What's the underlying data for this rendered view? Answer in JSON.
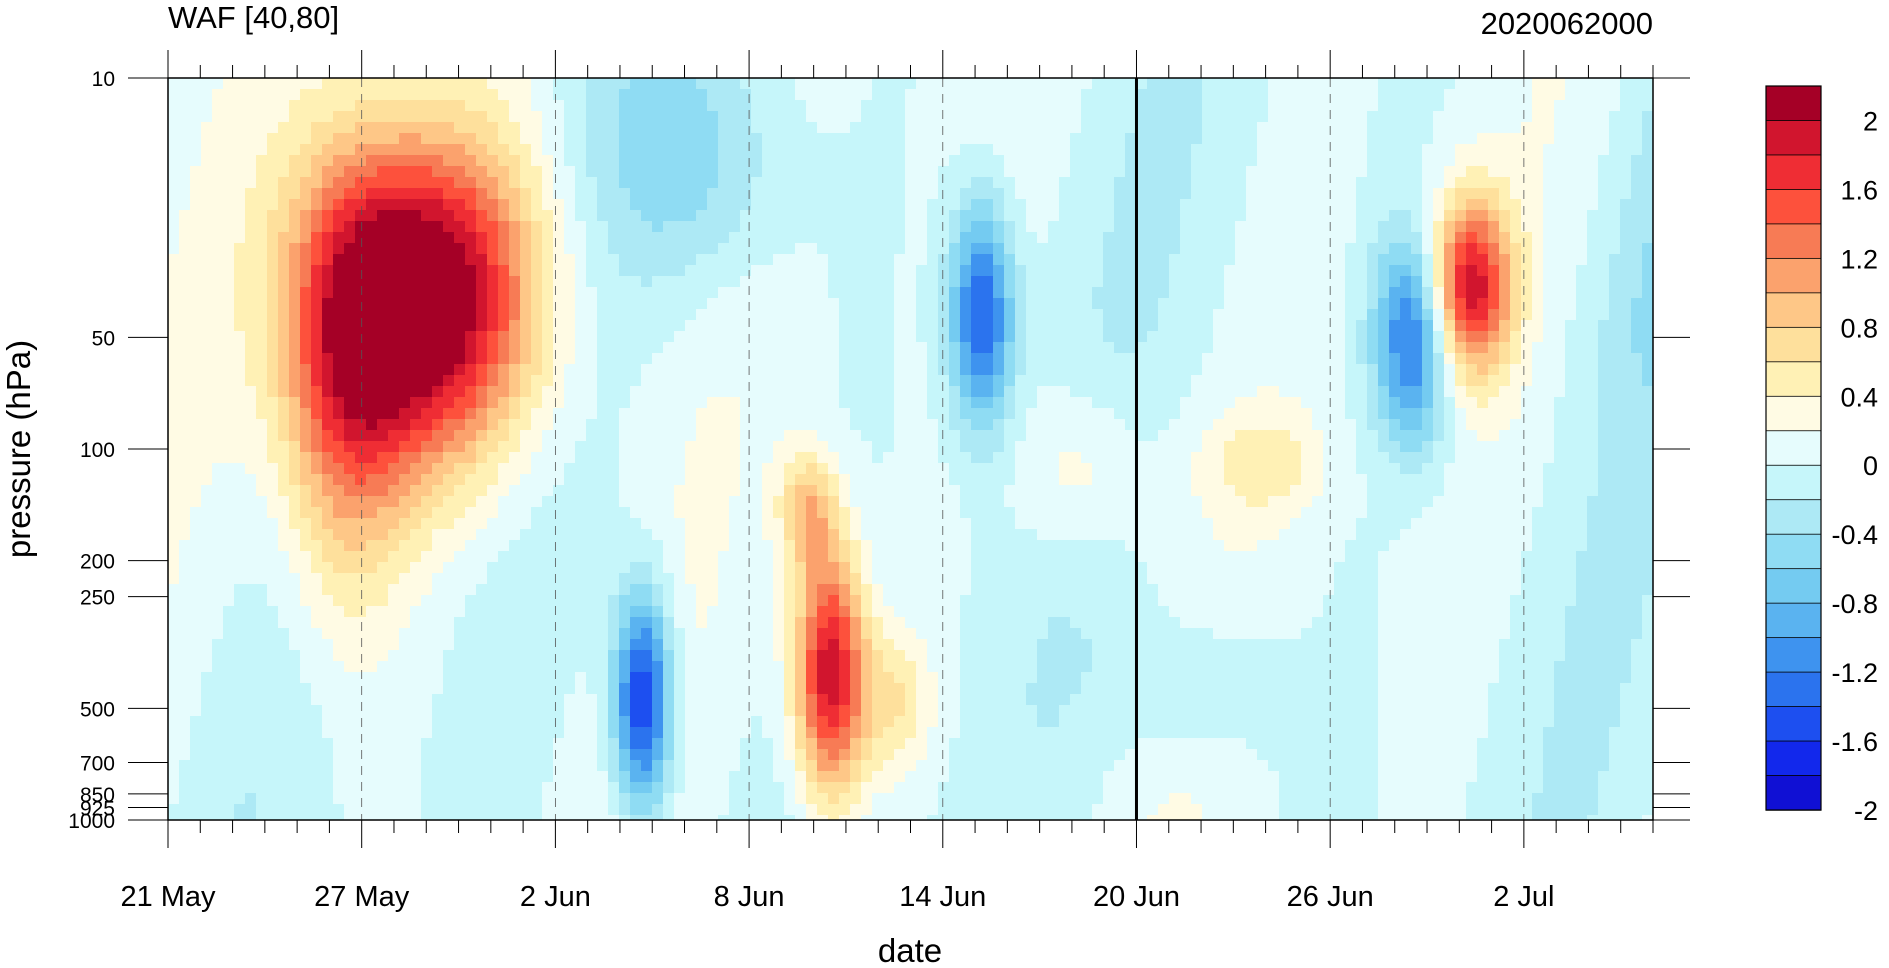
{
  "chart_data": {
    "type": "heatmap",
    "subtype": "filled-contour",
    "title_left": "WAF [40,80]",
    "title_right": "2020062000",
    "xlabel": "date",
    "ylabel": "pressure (hPa)",
    "x_tick_labels": [
      "21 May",
      "27 May",
      "2 Jun",
      "8 Jun",
      "14 Jun",
      "20 Jun",
      "26 Jun",
      "2 Jul"
    ],
    "x_tick_dates": [
      "2020-05-21",
      "2020-05-27",
      "2020-06-02",
      "2020-06-08",
      "2020-06-14",
      "2020-06-20",
      "2020-06-26",
      "2020-07-02"
    ],
    "x_range": [
      "2020-05-21",
      "2020-07-06"
    ],
    "y_tick_labels": [
      "10",
      "50",
      "100",
      "200",
      "250",
      "500",
      "700",
      "850",
      "925",
      "1000"
    ],
    "y_tick_values": [
      10,
      50,
      100,
      200,
      250,
      500,
      700,
      850,
      925,
      1000
    ],
    "y_range": [
      1000,
      10
    ],
    "y_scale": "log",
    "y_inverted": true,
    "reference_line_date": "2020-06-20",
    "colorbar": {
      "labels": [
        "2",
        "1.6",
        "1.2",
        "0.8",
        "0.4",
        "0",
        "-0.4",
        "-0.8",
        "-1.2",
        "-1.6",
        "-2"
      ],
      "colors": [
        "#a50026",
        "#d1152e",
        "#ef2d34",
        "#fd513c",
        "#f77b55",
        "#fba26d",
        "#fec787",
        "#fee09c",
        "#fff1b5",
        "#fffbe4",
        "#e6fcfd",
        "#c6f6fa",
        "#ade9f5",
        "#8fdcf3",
        "#74cbf1",
        "#5ab3f0",
        "#3e93ef",
        "#2b73ee",
        "#1d4ff0",
        "#1228ec",
        "#1010d4"
      ]
    },
    "grid": "dashed-vertical",
    "legend": "right"
  }
}
